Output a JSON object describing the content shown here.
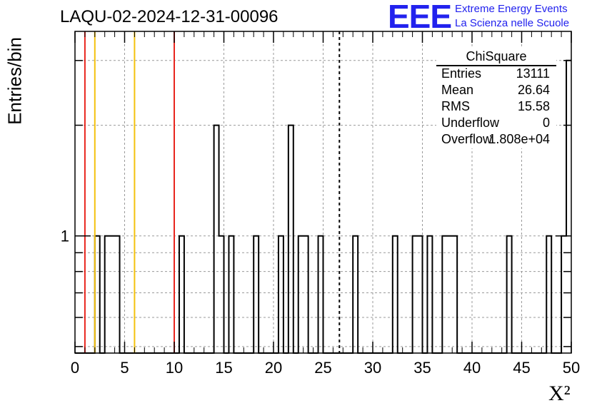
{
  "header": {
    "title": "LAQU-02-2024-12-31-00096",
    "logo": "EEE",
    "org_line1": "Extreme Energy Events",
    "org_line2": "La Scienza nelle Scuole"
  },
  "stats_box": {
    "name": "ChiSquare",
    "rows": [
      {
        "key": "Entries",
        "value": "13111"
      },
      {
        "key": "Mean",
        "value": "26.64"
      },
      {
        "key": "RMS",
        "value": "15.58"
      },
      {
        "key": "Underflow",
        "value": "0"
      },
      {
        "key": "Overflow",
        "value": "1.808e+04"
      }
    ]
  },
  "colors": {
    "red": "#e8251e",
    "yellow": "#f4c20d",
    "frame": "#000000",
    "grid": "#9a9a9a",
    "logo": "#2222ee"
  },
  "chart_data": {
    "type": "bar",
    "histogram": "step",
    "xlabel": "X²",
    "ylabel": "Entries/bin",
    "xlim": [
      0,
      50
    ],
    "ylim": [
      0.48,
      3.6
    ],
    "yscale": "log",
    "grid": true,
    "legend": "top-right",
    "xticks": [
      "0",
      "5",
      "10",
      "15",
      "20",
      "25",
      "30",
      "35",
      "40",
      "45",
      "50"
    ],
    "yticks": [
      "1"
    ],
    "bin_width": 0.5,
    "bins": [
      {
        "x": 2.0,
        "y": 1
      },
      {
        "x": 3.0,
        "y": 1
      },
      {
        "x": 3.5,
        "y": 1
      },
      {
        "x": 4.0,
        "y": 1
      },
      {
        "x": 10.5,
        "y": 1
      },
      {
        "x": 14.0,
        "y": 2
      },
      {
        "x": 14.5,
        "y": 1
      },
      {
        "x": 15.5,
        "y": 1
      },
      {
        "x": 18.0,
        "y": 1
      },
      {
        "x": 20.5,
        "y": 1
      },
      {
        "x": 21.5,
        "y": 2
      },
      {
        "x": 22.5,
        "y": 1
      },
      {
        "x": 23.0,
        "y": 1
      },
      {
        "x": 24.5,
        "y": 1
      },
      {
        "x": 28.0,
        "y": 1
      },
      {
        "x": 32.0,
        "y": 1
      },
      {
        "x": 34.0,
        "y": 1
      },
      {
        "x": 34.5,
        "y": 1
      },
      {
        "x": 35.5,
        "y": 1
      },
      {
        "x": 37.0,
        "y": 1
      },
      {
        "x": 37.5,
        "y": 1
      },
      {
        "x": 38.0,
        "y": 1
      },
      {
        "x": 43.5,
        "y": 1
      },
      {
        "x": 47.5,
        "y": 1
      },
      {
        "x": 49.0,
        "y": 1
      },
      {
        "x": 49.5,
        "y": 3
      }
    ],
    "vlines": [
      {
        "x": 1.0,
        "color": "red",
        "style": "solid"
      },
      {
        "x": 2.0,
        "color": "yellow",
        "style": "solid"
      },
      {
        "x": 6.0,
        "color": "yellow",
        "style": "solid"
      },
      {
        "x": 10.0,
        "color": "red",
        "style": "solid"
      },
      {
        "x": 26.64,
        "color": "black",
        "style": "dashed"
      }
    ]
  }
}
